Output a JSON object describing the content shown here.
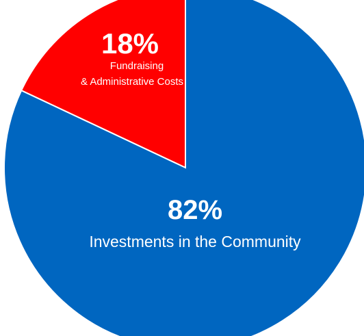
{
  "chart_data": {
    "type": "pie",
    "title": "",
    "start_angle_deg": 0,
    "direction": "counterclockwise-from-top",
    "slices": [
      {
        "label": "Fundraising & Administrative Costs",
        "label_lines": [
          "Fundraising",
          "& Administrative Costs"
        ],
        "value": 18,
        "value_label": "18%",
        "color": "#ff0000"
      },
      {
        "label": "Investments in the Community",
        "label_lines": [
          "Investments in the Community"
        ],
        "value": 82,
        "value_label": "82%",
        "color": "#0066c0"
      }
    ]
  }
}
